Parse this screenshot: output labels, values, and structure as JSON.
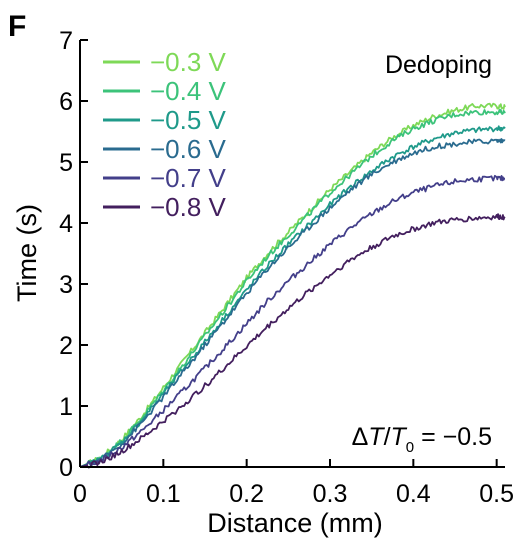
{
  "panel_letter": "F",
  "chart_data": {
    "type": "line",
    "title": "",
    "xlabel": "Distance (mm)",
    "ylabel": "Time (s)",
    "xlim": [
      0,
      0.51
    ],
    "ylim": [
      0,
      7
    ],
    "x_ticks": [
      0,
      0.1,
      0.2,
      0.3,
      0.4,
      0.5
    ],
    "x_tick_labels": [
      "0",
      "0.1",
      "0.2",
      "0.3",
      "0.4",
      "0.5"
    ],
    "y_ticks": [
      0,
      1,
      2,
      3,
      4,
      5,
      6,
      7
    ],
    "y_tick_labels": [
      "0",
      "1",
      "2",
      "3",
      "4",
      "5",
      "6",
      "7"
    ],
    "grid": false,
    "legend_position": "top-left",
    "annotations": {
      "top_right": "Dedoping",
      "bottom_right": {
        "prefix": "Δ",
        "T1": "T",
        "slash": "/",
        "T2": "T",
        "sub": "0",
        "rest": " = −0.5"
      }
    },
    "series": [
      {
        "name": "−0.3 V",
        "color": "#7ed957",
        "x": [
          0,
          0.025,
          0.05,
          0.075,
          0.1,
          0.125,
          0.15,
          0.175,
          0.2,
          0.225,
          0.25,
          0.275,
          0.3,
          0.325,
          0.35,
          0.375,
          0.4,
          0.425,
          0.45,
          0.475,
          0.5,
          0.51
        ],
        "y": [
          0,
          0.15,
          0.45,
          0.85,
          1.3,
          1.75,
          2.2,
          2.65,
          3.1,
          3.5,
          3.85,
          4.2,
          4.55,
          4.85,
          5.15,
          5.4,
          5.6,
          5.75,
          5.85,
          5.92,
          5.92,
          5.9
        ]
      },
      {
        "name": "−0.4 V",
        "color": "#3cc37a",
        "x": [
          0,
          0.025,
          0.05,
          0.075,
          0.1,
          0.125,
          0.15,
          0.175,
          0.2,
          0.225,
          0.25,
          0.275,
          0.3,
          0.325,
          0.35,
          0.375,
          0.4,
          0.425,
          0.45,
          0.475,
          0.5,
          0.51
        ],
        "y": [
          0,
          0.14,
          0.43,
          0.82,
          1.25,
          1.7,
          2.15,
          2.6,
          3.05,
          3.45,
          3.8,
          4.15,
          4.5,
          4.8,
          5.1,
          5.35,
          5.55,
          5.68,
          5.78,
          5.82,
          5.82,
          5.8
        ]
      },
      {
        "name": "−0.5 V",
        "color": "#1f9a8a",
        "x": [
          0,
          0.025,
          0.05,
          0.075,
          0.1,
          0.125,
          0.15,
          0.175,
          0.2,
          0.225,
          0.25,
          0.275,
          0.3,
          0.325,
          0.35,
          0.375,
          0.4,
          0.425,
          0.45,
          0.475,
          0.5,
          0.51
        ],
        "y": [
          0,
          0.13,
          0.4,
          0.78,
          1.2,
          1.63,
          2.05,
          2.48,
          2.9,
          3.3,
          3.65,
          3.98,
          4.3,
          4.6,
          4.85,
          5.08,
          5.25,
          5.38,
          5.48,
          5.52,
          5.55,
          5.55
        ]
      },
      {
        "name": "−0.6 V",
        "color": "#2a6b8f",
        "x": [
          0,
          0.025,
          0.05,
          0.075,
          0.1,
          0.125,
          0.15,
          0.175,
          0.2,
          0.225,
          0.25,
          0.275,
          0.3,
          0.325,
          0.35,
          0.375,
          0.4,
          0.425,
          0.45,
          0.475,
          0.5,
          0.51
        ],
        "y": [
          0,
          0.12,
          0.38,
          0.74,
          1.15,
          1.57,
          2.0,
          2.42,
          2.85,
          3.25,
          3.6,
          3.93,
          4.25,
          4.55,
          4.8,
          5.0,
          5.15,
          5.25,
          5.3,
          5.33,
          5.35,
          5.35
        ]
      },
      {
        "name": "−0.7 V",
        "color": "#433f8a",
        "x": [
          0,
          0.025,
          0.05,
          0.075,
          0.1,
          0.125,
          0.15,
          0.175,
          0.2,
          0.225,
          0.25,
          0.275,
          0.3,
          0.325,
          0.35,
          0.375,
          0.4,
          0.425,
          0.45,
          0.475,
          0.5,
          0.51
        ],
        "y": [
          0,
          0.1,
          0.32,
          0.6,
          0.93,
          1.27,
          1.62,
          1.98,
          2.35,
          2.72,
          3.05,
          3.35,
          3.65,
          3.92,
          4.15,
          4.35,
          4.5,
          4.6,
          4.68,
          4.72,
          4.73,
          4.73
        ]
      },
      {
        "name": "−0.8 V",
        "color": "#431f5e",
        "x": [
          0,
          0.025,
          0.05,
          0.075,
          0.1,
          0.125,
          0.15,
          0.175,
          0.2,
          0.225,
          0.25,
          0.275,
          0.3,
          0.325,
          0.35,
          0.375,
          0.4,
          0.425,
          0.45,
          0.475,
          0.5,
          0.51
        ],
        "y": [
          0,
          0.08,
          0.25,
          0.48,
          0.75,
          1.03,
          1.33,
          1.65,
          1.98,
          2.3,
          2.6,
          2.88,
          3.15,
          3.4,
          3.6,
          3.78,
          3.9,
          4.0,
          4.05,
          4.08,
          4.1,
          4.1
        ]
      }
    ]
  }
}
